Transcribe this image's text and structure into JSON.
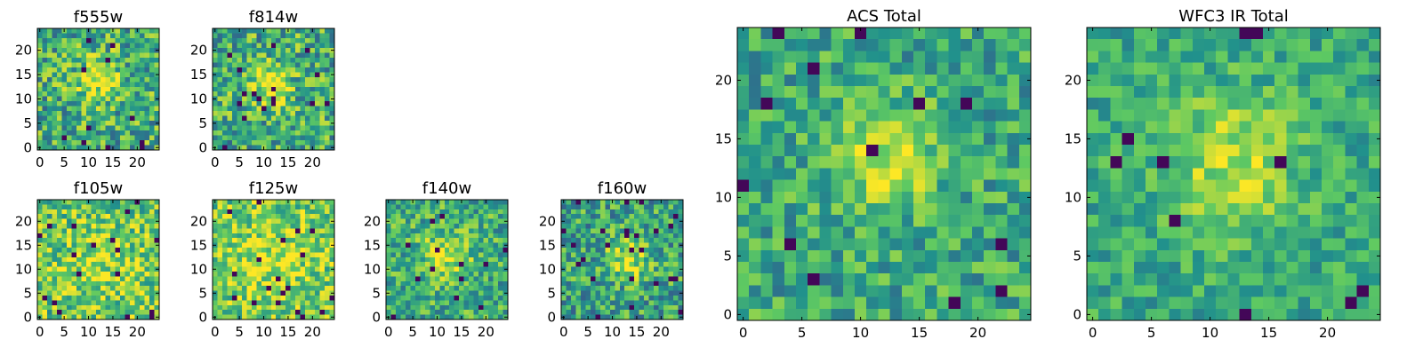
{
  "chart_data": [
    {
      "type": "heatmap",
      "title": "f555w",
      "xlim": [
        0,
        24
      ],
      "ylim": [
        0,
        24
      ],
      "grid_size": 25,
      "xticks": [
        0,
        5,
        10,
        15,
        20
      ],
      "yticks": [
        0,
        5,
        10,
        15,
        20
      ],
      "colormap": "viridis",
      "pattern": {
        "seed": 11,
        "noise": 0.6,
        "peak_x": 12,
        "peak_y": 14,
        "peak_sigma": 3.2,
        "peak_amp": 0.35,
        "base": 0.62
      }
    },
    {
      "type": "heatmap",
      "title": "f814w",
      "xlim": [
        0,
        24
      ],
      "ylim": [
        0,
        24
      ],
      "grid_size": 25,
      "xticks": [
        0,
        5,
        10,
        15,
        20
      ],
      "yticks": [
        0,
        5,
        10,
        15,
        20
      ],
      "colormap": "viridis",
      "pattern": {
        "seed": 23,
        "noise": 0.6,
        "peak_x": 11,
        "peak_y": 13,
        "peak_sigma": 3.2,
        "peak_amp": 0.35,
        "base": 0.62
      }
    },
    {
      "type": "heatmap",
      "title": "f105w",
      "xlim": [
        0,
        24
      ],
      "ylim": [
        0,
        24
      ],
      "grid_size": 25,
      "xticks": [
        0,
        5,
        10,
        15,
        20
      ],
      "yticks": [
        0,
        5,
        10,
        15,
        20
      ],
      "colormap": "viridis",
      "pattern": {
        "seed": 37,
        "noise": 0.55,
        "peak_x": 12,
        "peak_y": 11,
        "peak_sigma": 6.0,
        "peak_amp": 0.15,
        "base": 0.72
      }
    },
    {
      "type": "heatmap",
      "title": "f125w",
      "xlim": [
        0,
        24
      ],
      "ylim": [
        0,
        24
      ],
      "grid_size": 25,
      "xticks": [
        0,
        5,
        10,
        15,
        20
      ],
      "yticks": [
        0,
        5,
        10,
        15,
        20
      ],
      "colormap": "viridis",
      "pattern": {
        "seed": 41,
        "noise": 0.5,
        "peak_x": 12,
        "peak_y": 12,
        "peak_sigma": 6.0,
        "peak_amp": 0.15,
        "base": 0.74
      }
    },
    {
      "type": "heatmap",
      "title": "f140w",
      "xlim": [
        0,
        24
      ],
      "ylim": [
        0,
        24
      ],
      "grid_size": 25,
      "xticks": [
        0,
        5,
        10,
        15,
        20
      ],
      "yticks": [
        0,
        5,
        10,
        15,
        20
      ],
      "colormap": "viridis",
      "pattern": {
        "seed": 53,
        "noise": 0.5,
        "peak_x": 12,
        "peak_y": 13,
        "peak_sigma": 3.5,
        "peak_amp": 0.3,
        "base": 0.62
      }
    },
    {
      "type": "heatmap",
      "title": "f160w",
      "xlim": [
        0,
        24
      ],
      "ylim": [
        0,
        24
      ],
      "grid_size": 25,
      "xticks": [
        0,
        5,
        10,
        15,
        20
      ],
      "yticks": [
        0,
        5,
        10,
        15,
        20
      ],
      "colormap": "viridis",
      "pattern": {
        "seed": 67,
        "noise": 0.55,
        "peak_x": 13,
        "peak_y": 12,
        "peak_sigma": 3.0,
        "peak_amp": 0.35,
        "base": 0.58
      }
    },
    {
      "type": "heatmap",
      "title": "ACS Total",
      "xlim": [
        0,
        24
      ],
      "ylim": [
        0,
        24
      ],
      "grid_size": 25,
      "xticks": [
        0,
        5,
        10,
        15,
        20
      ],
      "yticks": [
        0,
        5,
        10,
        15,
        20
      ],
      "colormap": "viridis",
      "pattern": {
        "seed": 79,
        "noise": 0.45,
        "peak_x": 12,
        "peak_y": 13,
        "peak_sigma": 3.0,
        "peak_amp": 0.35,
        "base": 0.6
      }
    },
    {
      "type": "heatmap",
      "title": "WFC3 IR Total",
      "xlim": [
        0,
        24
      ],
      "ylim": [
        0,
        24
      ],
      "grid_size": 25,
      "xticks": [
        0,
        5,
        10,
        15,
        20
      ],
      "yticks": [
        0,
        5,
        10,
        15,
        20
      ],
      "colormap": "viridis",
      "pattern": {
        "seed": 97,
        "noise": 0.35,
        "peak_x": 12,
        "peak_y": 13,
        "peak_sigma": 4.0,
        "peak_amp": 0.3,
        "base": 0.6
      }
    }
  ]
}
